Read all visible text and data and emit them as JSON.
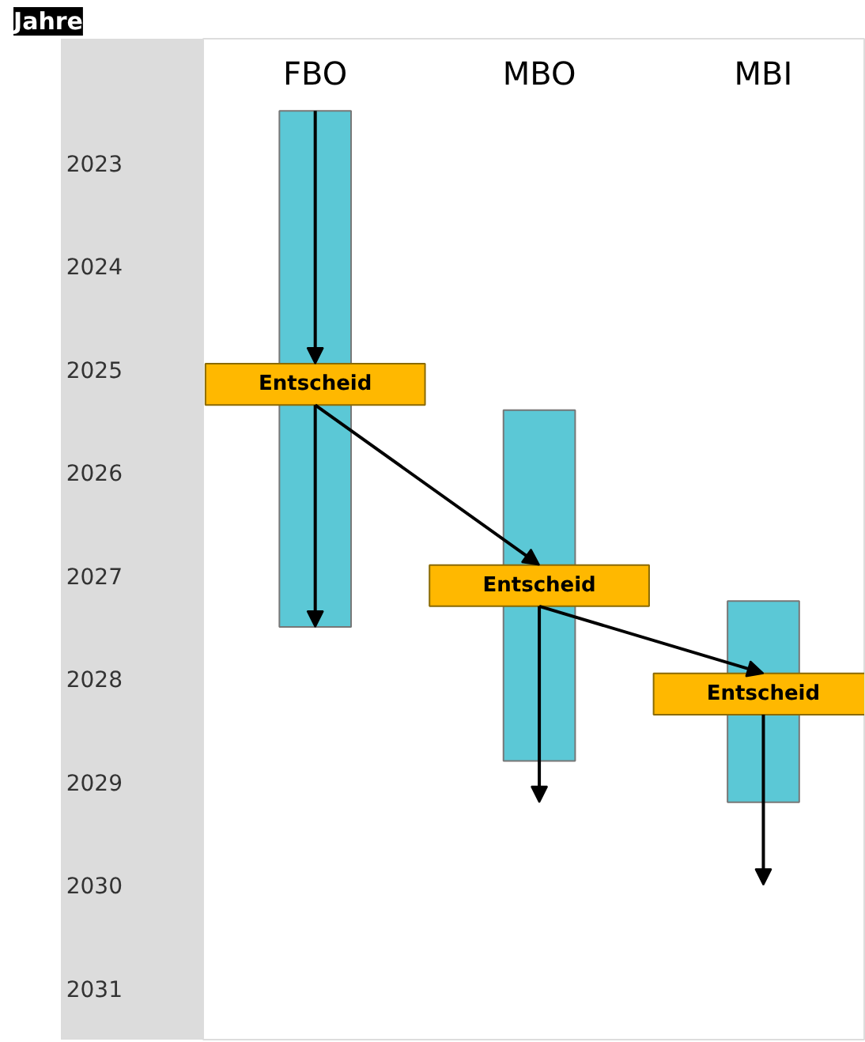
{
  "chart_data": {
    "type": "bar",
    "ylabel": "Jahre",
    "categories": [
      "FBO",
      "MBO",
      "MBI"
    ],
    "series": [
      {
        "color": "#5bc8d6",
        "base": [
          2023.0,
          2025.9,
          2027.75
        ],
        "values": [
          5.0,
          3.4,
          1.95
        ]
      },
      {
        "color": "#ffb800",
        "base": [
          2025.45,
          2027.4,
          2028.45
        ],
        "values": [
          0.4,
          0.4,
          0.4
        ],
        "value_labels": [
          "Entscheid",
          "Entscheid",
          "Entscheid"
        ]
      }
    ],
    "ylim": [
      2032,
      2022.3
    ],
    "yticks": [
      {
        "value": 2023.5,
        "label": "2023"
      },
      {
        "value": 2024.5,
        "label": "2024"
      },
      {
        "value": 2025.5,
        "label": "2025"
      },
      {
        "value": 2026.5,
        "label": "2026"
      },
      {
        "value": 2027.5,
        "label": "2027"
      },
      {
        "value": 2028.5,
        "label": "2028"
      },
      {
        "value": 2029.5,
        "label": "2029"
      },
      {
        "value": 2030.5,
        "label": "2030"
      },
      {
        "value": 2031.5,
        "label": "2031"
      }
    ]
  }
}
